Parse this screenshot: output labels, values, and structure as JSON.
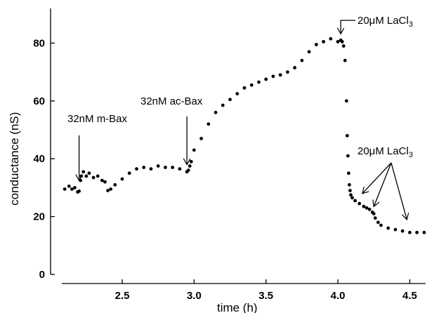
{
  "chart_data": {
    "type": "scatter",
    "title": "",
    "xlabel": "time (h)",
    "ylabel": "conductance (nS)",
    "xlim": [
      2.07,
      4.62
    ],
    "ylim": [
      0,
      92
    ],
    "xticks": [
      2.5,
      3.0,
      3.5,
      4.0,
      4.5
    ],
    "xtick_labels": [
      "2.5",
      "3.0",
      "3.5",
      "4.0",
      "4.5"
    ],
    "yticks": [
      0,
      20,
      40,
      60,
      80
    ],
    "ytick_labels": [
      "0",
      "20",
      "40",
      "60",
      "80"
    ],
    "grid": false,
    "legend": "none",
    "marker_color": "#000000",
    "series": [
      {
        "x": [
          2.1,
          2.13,
          2.15,
          2.17,
          2.19,
          2.2,
          2.21,
          2.215,
          2.23,
          2.25,
          2.27,
          2.3,
          2.33,
          2.36,
          2.38,
          2.4,
          2.42,
          2.45,
          2.5,
          2.55,
          2.6,
          2.65,
          2.7,
          2.75,
          2.8,
          2.85,
          2.9,
          2.95,
          2.96,
          2.97,
          2.98,
          3.0,
          3.05,
          3.1,
          3.15,
          3.2,
          3.25,
          3.3,
          3.35,
          3.4,
          3.45,
          3.5,
          3.55,
          3.6,
          3.65,
          3.7,
          3.75,
          3.8,
          3.85,
          3.9,
          3.95,
          4.0,
          4.02,
          4.03,
          4.04,
          4.05,
          4.06,
          4.065,
          4.07,
          4.075,
          4.08,
          4.085,
          4.09,
          4.1,
          4.12,
          4.15,
          4.18,
          4.2,
          4.22,
          4.24,
          4.25,
          4.26,
          4.28,
          4.3,
          4.35,
          4.4,
          4.45,
          4.5,
          4.55,
          4.6
        ],
        "y": [
          29.5,
          30.5,
          29.5,
          30,
          28.5,
          28.8,
          32.5,
          34,
          35.5,
          34,
          35,
          33.5,
          34,
          32.5,
          32,
          29,
          29.5,
          31,
          33,
          35,
          36.5,
          37,
          36.5,
          37.5,
          37,
          37,
          36.5,
          35.5,
          36,
          37.5,
          39,
          43,
          47,
          52,
          56,
          58.5,
          60.5,
          62.5,
          64.5,
          65.5,
          66.5,
          67.5,
          68.5,
          69,
          70,
          71.5,
          74,
          77,
          79.5,
          80.5,
          81.5,
          80.5,
          81,
          80.5,
          79,
          74,
          60,
          48,
          41,
          35,
          31,
          29,
          27.5,
          26.5,
          25.5,
          24.5,
          23.5,
          23,
          22.5,
          21.5,
          21,
          19.5,
          18,
          17,
          16,
          15.5,
          15,
          14.5,
          14.5,
          14.5
        ]
      }
    ],
    "annotations": [
      {
        "text": "32nM m-Bax",
        "x": 2.2,
        "y": 31
      },
      {
        "text": "32nM ac-Bax",
        "x": 2.95,
        "y": 36.5
      },
      {
        "text": "20μM LaCl3",
        "x": 4.02,
        "y": 81.5
      },
      {
        "text": "20μM LaCl3",
        "points": [
          [
            4.17,
            26.5
          ],
          [
            4.25,
            22
          ],
          [
            4.48,
            17.5
          ]
        ]
      }
    ]
  }
}
